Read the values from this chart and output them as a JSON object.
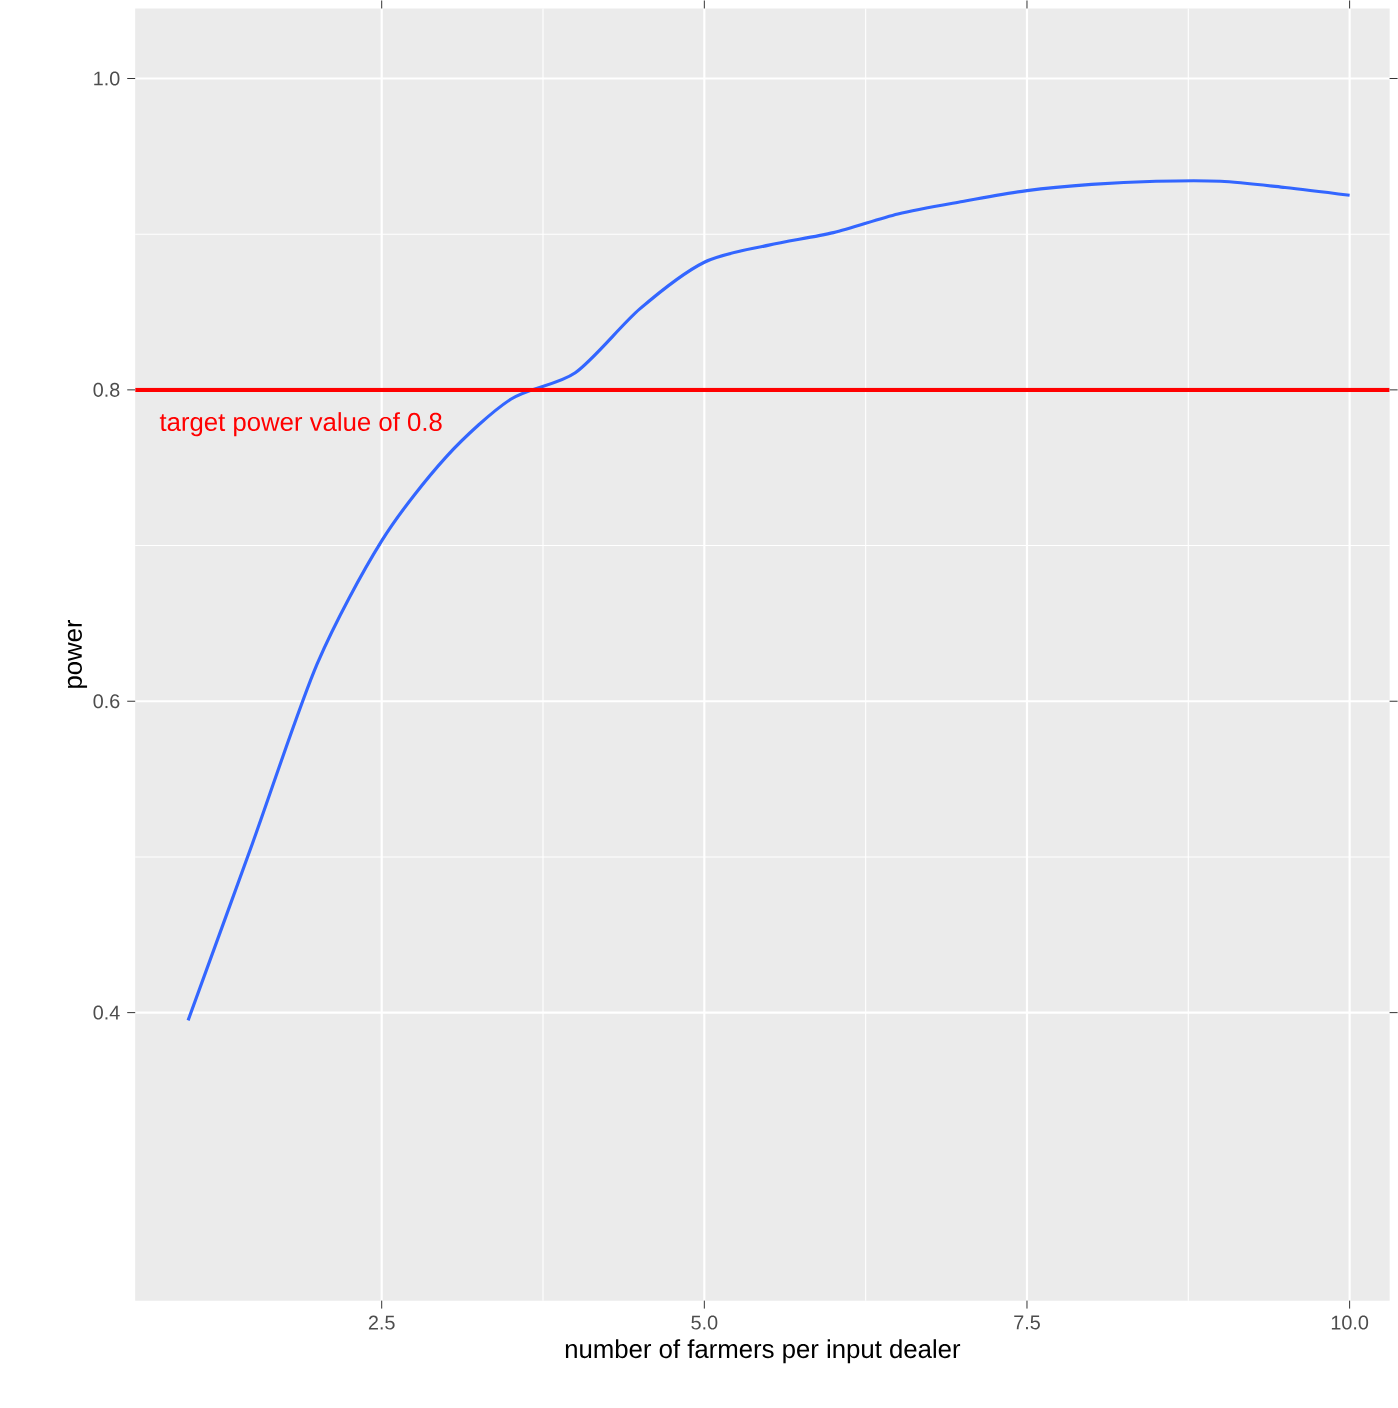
{
  "chart_data": {
    "type": "line",
    "xlabel": "number of farmers per input dealer",
    "ylabel": "power",
    "x": [
      1,
      1.5,
      2,
      2.5,
      3,
      3.5,
      4,
      4.5,
      5,
      5.5,
      6,
      6.5,
      7,
      7.5,
      8,
      8.5,
      9,
      9.5,
      10
    ],
    "series": [
      {
        "color": "#3366ff",
        "values": [
          0.395,
          0.509,
          0.624,
          0.703,
          0.757,
          0.794,
          0.811,
          0.852,
          0.882,
          0.893,
          0.901,
          0.913,
          0.921,
          0.928,
          0.932,
          0.934,
          0.934,
          0.93,
          0.925
        ]
      }
    ],
    "xlim": [
      0.59,
      10.31
    ],
    "ylim": [
      0.215,
      1.045
    ],
    "xticks": [
      {
        "value": 2.5,
        "label": "2.5"
      },
      {
        "value": 5,
        "label": "5.0"
      },
      {
        "value": 7.5,
        "label": "7.5"
      },
      {
        "value": 10,
        "label": "10.0"
      }
    ],
    "yticks": [
      {
        "value": 0.4,
        "label": "0.4"
      },
      {
        "value": 0.6,
        "label": "0.6"
      },
      {
        "value": 0.8,
        "label": "0.8"
      },
      {
        "value": 1.0,
        "label": "1.0"
      }
    ],
    "grid": true,
    "ref_lines": [
      {
        "axis": "y",
        "value": 0.8,
        "label": "target power value of 0.8",
        "color": "#ff0000"
      }
    ]
  }
}
